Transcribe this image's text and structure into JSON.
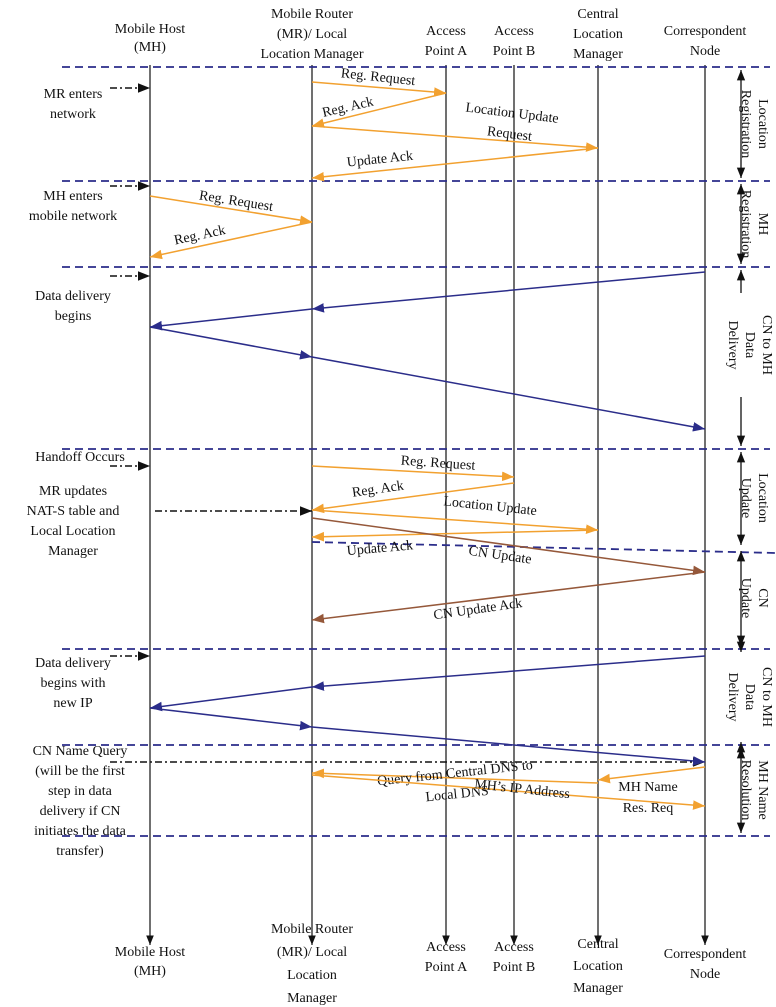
{
  "participants_top": [
    [
      "Mobile Host",
      "(MH)"
    ],
    [
      "Mobile Router",
      "(MR)/ Local",
      "Location Manager"
    ],
    [
      "Access",
      "Point A"
    ],
    [
      "Access",
      "Point B"
    ],
    [
      "Central",
      "Location",
      "Manager"
    ],
    [
      "Correspondent",
      "Node"
    ]
  ],
  "participants_bottom": [
    [
      "Mobile  Host",
      "(MH)"
    ],
    [
      "Mobile Router",
      "(MR)/ Local",
      "Location",
      "Manager"
    ],
    [
      "Access",
      "Point A"
    ],
    [
      "Access",
      "Point B"
    ],
    [
      "Central",
      "Location",
      "Manager"
    ],
    [
      "Correspondent",
      "Node"
    ]
  ],
  "notes": [
    [
      "MR enters",
      "network"
    ],
    [
      "MH enters",
      "mobile network"
    ],
    [
      "Data delivery",
      "begins"
    ],
    [
      "Handoff Occurs"
    ],
    [
      "MR updates",
      "NAT-S table and",
      "Local Location",
      "Manager"
    ],
    [
      "Data delivery",
      "begins with",
      "new IP"
    ],
    [
      "CN Name Query",
      "(will be the first",
      "step in data",
      "delivery if CN",
      "initiates the data",
      "transfer)"
    ]
  ],
  "messages": [
    [
      "Reg. Request"
    ],
    [
      "Reg. Ack"
    ],
    [
      "Location Update",
      "Request"
    ],
    [
      "Update Ack"
    ],
    [
      "Reg. Request"
    ],
    [
      "Reg. Ack"
    ],
    [
      "Reg. Request"
    ],
    [
      "Reg. Ack"
    ],
    [
      "Location Update"
    ],
    [
      "Update Ack"
    ],
    [
      "CN Update"
    ],
    [
      "CN Update Ack"
    ],
    [
      "Query from Central DNS to",
      "Local DNS"
    ],
    [
      "MH Name",
      "Res. Req"
    ],
    [
      "MH’s IP Address"
    ]
  ],
  "phases": [
    [
      "Location",
      "Registration"
    ],
    [
      "MH",
      "Registration"
    ],
    [
      "CN to MH",
      "Data",
      "Delivery"
    ],
    [
      "Location",
      "Update"
    ],
    [
      "CN",
      "Update"
    ],
    [
      "CN to MH",
      "Data",
      "Delivery"
    ],
    [
      "MH Name",
      "Resolution"
    ]
  ]
}
